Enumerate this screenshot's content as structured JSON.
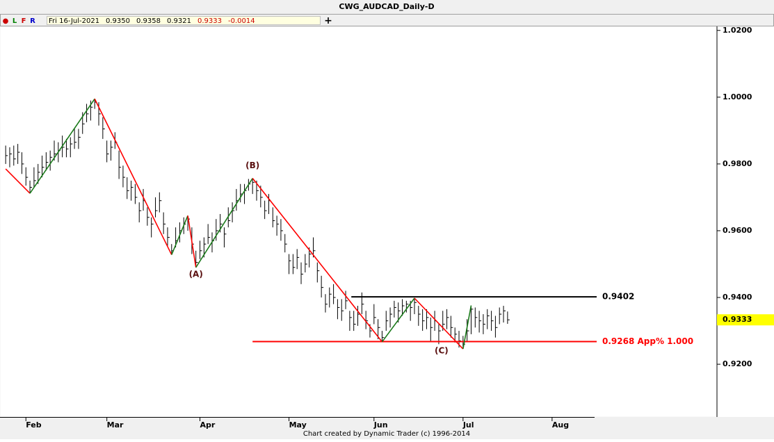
{
  "toolbar": {
    "marks": [
      "●",
      "L",
      "F",
      "R"
    ],
    "mark_colors": [
      "#cc0000",
      "#008000",
      "#cc0000",
      "#0000cc"
    ],
    "readout": [
      "Fri 16-Jul-2021",
      "0.9350",
      "0.9358",
      "0.9321",
      "0.9333",
      "-0.0014"
    ],
    "readout_colors": [
      "#000000",
      "#000000",
      "#000000",
      "#000000",
      "#cc0000",
      "#cc0000"
    ],
    "add": "+"
  },
  "footer": "Chart created by Dynamic Trader  (c)  1996-2014",
  "chart_data": {
    "type": "ohlc",
    "title": "CWG_AUDCAD_Daily-D",
    "bar_color": "#000000",
    "close": [
      0.9825,
      0.983,
      0.9815,
      0.9835,
      0.98,
      0.976,
      0.973,
      0.975,
      0.9775,
      0.979,
      0.9805,
      0.982,
      0.983,
      0.984,
      0.985,
      0.9845,
      0.986,
      0.9865,
      0.988,
      0.992,
      0.995,
      0.997,
      0.9985,
      0.995,
      0.9905,
      0.983,
      0.985,
      0.9865,
      0.979,
      0.976,
      0.972,
      0.973,
      0.97,
      0.966,
      0.969,
      0.964,
      0.962,
      0.966,
      0.969,
      0.962,
      0.958,
      0.954,
      0.957,
      0.96,
      0.962,
      0.9635,
      0.956,
      0.9505,
      0.954,
      0.956,
      0.958,
      0.957,
      0.96,
      0.962,
      0.959,
      0.963,
      0.966,
      0.969,
      0.971,
      0.972,
      0.974,
      0.9745,
      0.972,
      0.97,
      0.966,
      0.969,
      0.963,
      0.962,
      0.96,
      0.956,
      0.951,
      0.949,
      0.952,
      0.947,
      0.95,
      0.953,
      0.954,
      0.948,
      0.943,
      0.938,
      0.941,
      0.94,
      0.937,
      0.936,
      0.939,
      0.934,
      0.932,
      0.935,
      0.938,
      0.933,
      0.93,
      0.934,
      0.931,
      0.928,
      0.933,
      0.935,
      0.937,
      0.936,
      0.9375,
      0.938,
      0.937,
      0.9385,
      0.935,
      0.933,
      0.934,
      0.931,
      0.933,
      0.93,
      0.932,
      0.934,
      0.931,
      0.929,
      0.927,
      0.926,
      0.93,
      0.9365,
      0.934,
      0.933,
      0.932,
      0.9345,
      0.933,
      0.931,
      0.935,
      0.936,
      0.9333
    ],
    "high": [
      0.9855,
      0.985,
      0.9855,
      0.986,
      0.9835,
      0.979,
      0.975,
      0.979,
      0.98,
      0.9825,
      0.9835,
      0.984,
      0.987,
      0.9865,
      0.9885,
      0.9875,
      0.988,
      0.9905,
      0.9905,
      0.9955,
      0.998,
      0.999,
      0.9995,
      0.9985,
      0.994,
      0.987,
      0.987,
      0.9895,
      0.984,
      0.9795,
      0.976,
      0.975,
      0.974,
      0.9685,
      0.9725,
      0.967,
      0.964,
      0.97,
      0.9715,
      0.9655,
      0.961,
      0.956,
      0.961,
      0.9625,
      0.964,
      0.9645,
      0.961,
      0.954,
      0.957,
      0.958,
      0.962,
      0.9595,
      0.9635,
      0.965,
      0.961,
      0.967,
      0.9685,
      0.9725,
      0.974,
      0.974,
      0.9755,
      0.9757,
      0.975,
      0.9735,
      0.969,
      0.971,
      0.967,
      0.9645,
      0.9635,
      0.959,
      0.953,
      0.953,
      0.9545,
      0.9505,
      0.953,
      0.955,
      0.958,
      0.9505,
      0.9465,
      0.941,
      0.943,
      0.944,
      0.9395,
      0.9395,
      0.942,
      0.936,
      0.936,
      0.9375,
      0.9415,
      0.936,
      0.932,
      0.938,
      0.9335,
      0.93,
      0.936,
      0.937,
      0.939,
      0.9385,
      0.9395,
      0.939,
      0.939,
      0.9398,
      0.9375,
      0.9365,
      0.9365,
      0.934,
      0.936,
      0.932,
      0.936,
      0.9365,
      0.9345,
      0.931,
      0.93,
      0.9285,
      0.9335,
      0.9376,
      0.937,
      0.936,
      0.935,
      0.9365,
      0.936,
      0.9345,
      0.937,
      0.9375,
      0.9358
    ],
    "low": [
      0.98,
      0.979,
      0.9795,
      0.98,
      0.977,
      0.9735,
      0.9712,
      0.973,
      0.974,
      0.976,
      0.978,
      0.978,
      0.981,
      0.9805,
      0.982,
      0.982,
      0.982,
      0.9845,
      0.9845,
      0.989,
      0.9925,
      0.993,
      0.9965,
      0.9915,
      0.9875,
      0.9805,
      0.981,
      0.9845,
      0.9755,
      0.973,
      0.9695,
      0.969,
      0.968,
      0.9625,
      0.966,
      0.9615,
      0.958,
      0.964,
      0.9655,
      0.959,
      0.9555,
      0.9528,
      0.955,
      0.9565,
      0.959,
      0.96,
      0.953,
      0.949,
      0.9515,
      0.952,
      0.956,
      0.9535,
      0.957,
      0.9595,
      0.955,
      0.961,
      0.9625,
      0.966,
      0.9685,
      0.968,
      0.972,
      0.971,
      0.969,
      0.967,
      0.9635,
      0.965,
      0.961,
      0.9585,
      0.957,
      0.9535,
      0.947,
      0.947,
      0.9485,
      0.944,
      0.9475,
      0.949,
      0.952,
      0.9445,
      0.94,
      0.9355,
      0.937,
      0.938,
      0.9335,
      0.933,
      0.9365,
      0.93,
      0.93,
      0.9315,
      0.935,
      0.9305,
      0.928,
      0.932,
      0.9275,
      0.9267,
      0.93,
      0.931,
      0.934,
      0.9325,
      0.9345,
      0.9355,
      0.933,
      0.935,
      0.9315,
      0.93,
      0.9305,
      0.927,
      0.93,
      0.926,
      0.93,
      0.9305,
      0.928,
      0.9265,
      0.925,
      0.9246,
      0.927,
      0.929,
      0.931,
      0.9295,
      0.929,
      0.9305,
      0.93,
      0.928,
      0.932,
      0.9325,
      0.9321
    ],
    "zigzag": {
      "x": [
        0,
        6,
        22,
        41,
        45,
        47,
        61,
        93,
        101,
        113,
        115
      ],
      "y": [
        0.9785,
        0.9712,
        0.9995,
        0.9528,
        0.9645,
        0.949,
        0.9757,
        0.9267,
        0.9398,
        0.9246,
        0.9376
      ],
      "up_color": "#1a7a1a",
      "down_color": "#ff0000"
    },
    "levels": [
      {
        "value": 0.9402,
        "label": "0.9402",
        "color": "#000000"
      },
      {
        "value": 0.9268,
        "label": "0.9268 App% 1.000",
        "color": "#ff0000"
      }
    ],
    "annotations": [
      "(A)",
      "(B)",
      "(C)"
    ],
    "annotation_color": "#5a1010",
    "last_price_color": "#ffff00",
    "xlim": [
      -1.4,
      145.5
    ],
    "xticks": [
      {
        "value": 5,
        "label": "Feb"
      },
      {
        "value": 25,
        "label": "Mar"
      },
      {
        "value": 48,
        "label": "Apr"
      },
      {
        "value": 70,
        "label": "May"
      },
      {
        "value": 91,
        "label": "Jun"
      },
      {
        "value": 113,
        "label": "Jul"
      },
      {
        "value": 135,
        "label": "Aug"
      }
    ],
    "ylim": [
      0.9042,
      1.0212
    ],
    "yticks": [
      {
        "value": 1.02,
        "label": "1.0200"
      },
      {
        "value": 1.0,
        "label": "1.0000"
      },
      {
        "value": 0.98,
        "label": "0.9800"
      },
      {
        "value": 0.96,
        "label": "0.9600"
      },
      {
        "value": 0.94,
        "label": "0.9400"
      },
      {
        "value": 0.92,
        "label": "0.9200"
      }
    ]
  }
}
